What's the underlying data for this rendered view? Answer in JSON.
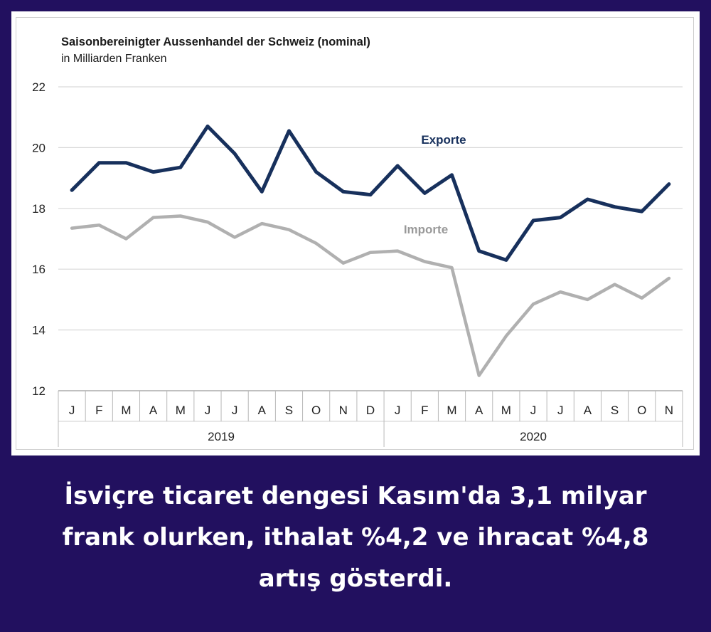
{
  "caption": "İsviçre ticaret dengesi Kasım'da 3,1 milyar frank olurken, ithalat %4,2 ve ihracat %4,8 artış gösterdi.",
  "colors": {
    "background": "#22105f",
    "exports": "#17305c",
    "imports": "#b0b0b0",
    "grid": "#d9d9d9"
  },
  "chart_data": {
    "type": "line",
    "title": "Saisonbereinigter Aussenhandel der Schweiz (nominal)",
    "subtitle": "in Milliarden Franken",
    "x": [
      "J",
      "F",
      "M",
      "A",
      "M",
      "J",
      "J",
      "A",
      "S",
      "O",
      "N",
      "D",
      "J",
      "F",
      "M",
      "A",
      "M",
      "J",
      "J",
      "A",
      "S",
      "O",
      "N"
    ],
    "years": [
      {
        "label": "2019",
        "months": 12
      },
      {
        "label": "2020",
        "months": 11
      }
    ],
    "ylim": [
      12,
      22
    ],
    "yticks": [
      "12",
      "14",
      "16",
      "18",
      "20",
      "22"
    ],
    "grid": true,
    "series": [
      {
        "name": "Exporte",
        "color": "#17305c",
        "values": [
          18.6,
          19.5,
          19.5,
          19.2,
          19.35,
          20.7,
          19.8,
          18.55,
          20.55,
          19.2,
          18.55,
          18.45,
          19.4,
          18.5,
          19.1,
          16.6,
          16.3,
          17.6,
          17.7,
          18.3,
          18.05,
          17.9,
          18.8
        ]
      },
      {
        "name": "Importe",
        "color": "#b0b0b0",
        "values": [
          17.35,
          17.45,
          17.0,
          17.7,
          17.75,
          17.55,
          17.05,
          17.5,
          17.3,
          16.85,
          16.2,
          16.55,
          16.6,
          16.25,
          16.05,
          12.5,
          13.8,
          14.85,
          15.25,
          15.0,
          15.5,
          15.05,
          15.7
        ]
      }
    ]
  }
}
